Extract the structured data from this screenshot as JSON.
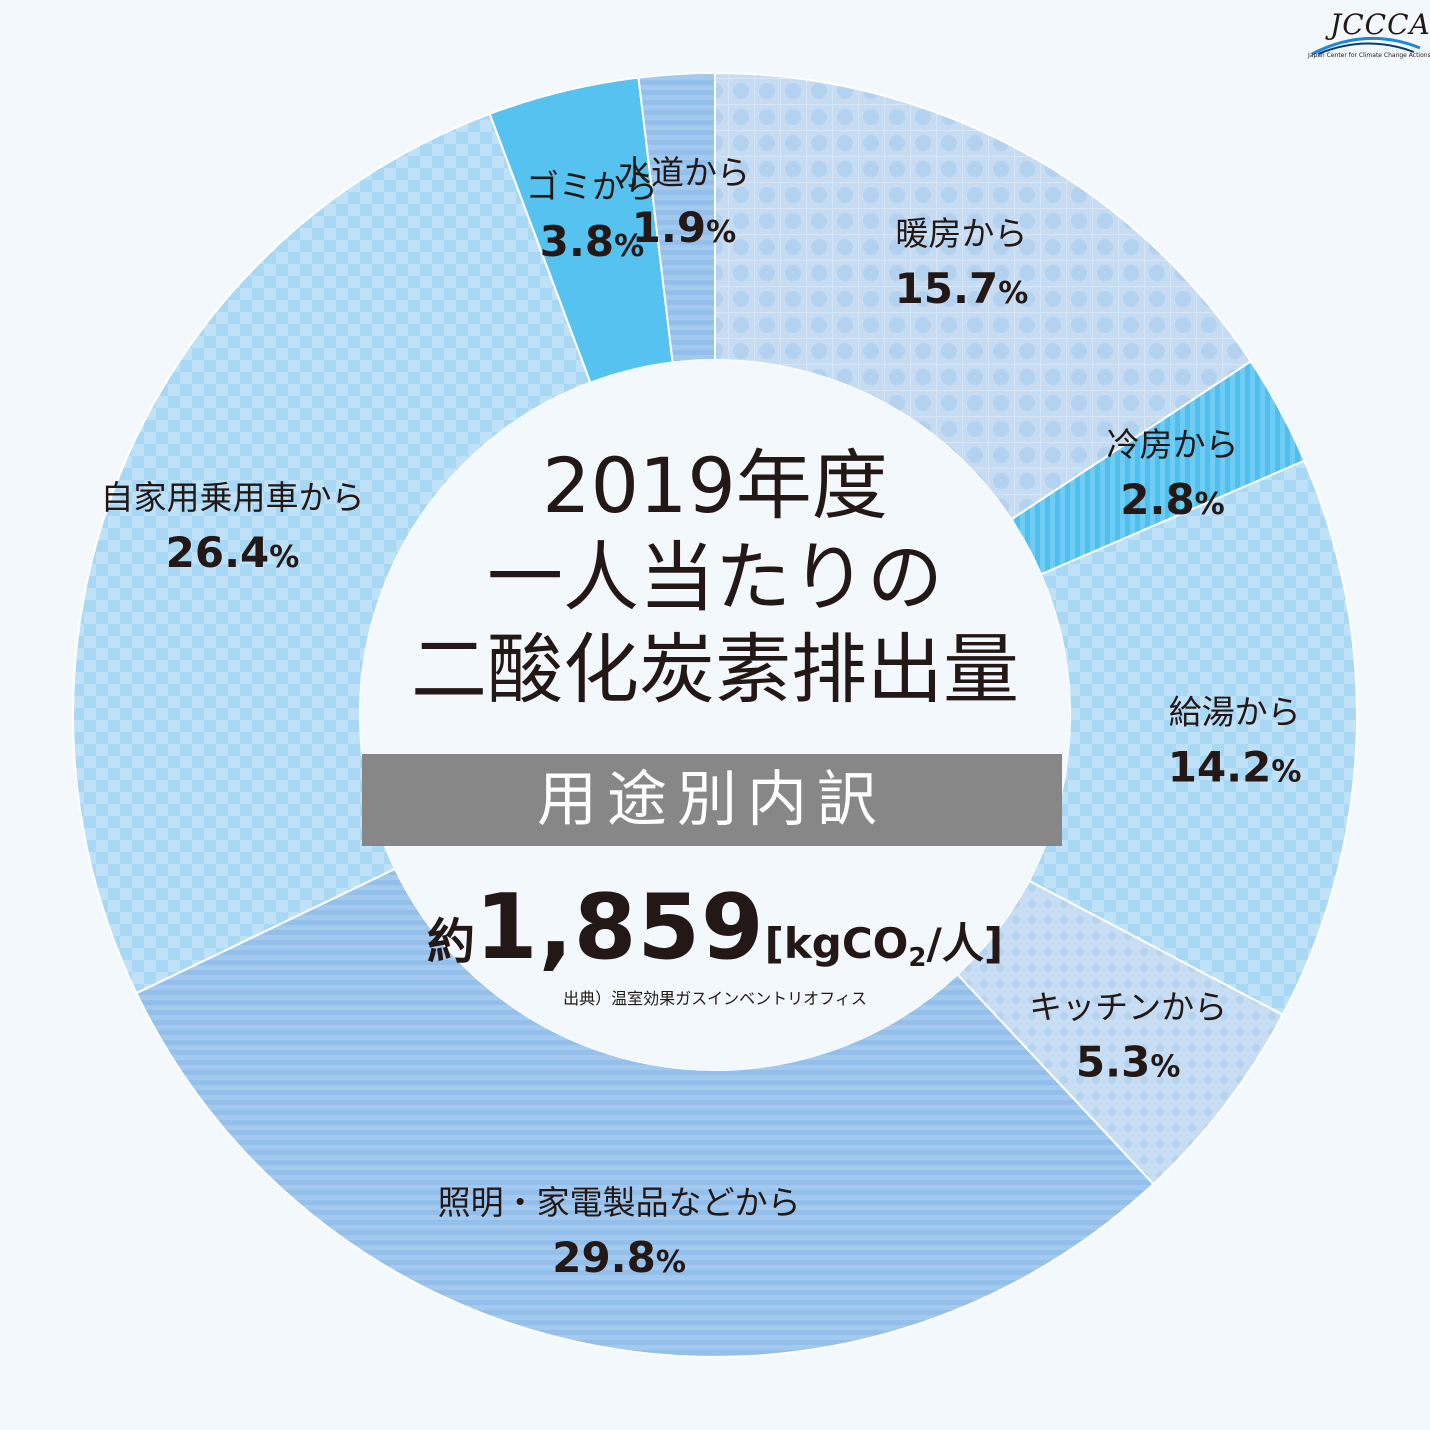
{
  "center": {
    "title_lines": [
      "2019年度",
      "一人当たりの",
      "二酸化炭素排出量"
    ],
    "subtitle": "用途別内訳",
    "total_prefix": "約",
    "total_value": "1,859",
    "total_unit_pre": "[kgCO",
    "total_unit_sub": "2",
    "total_unit_post": "/人]",
    "source": "出典）温室効果ガスインベントリオフィス"
  },
  "logo": {
    "mark": "JCCCA",
    "subtitle": "Japan Center for Climate Change Actions"
  },
  "chart_data": {
    "type": "pie",
    "unit": "%",
    "slices": [
      {
        "label": "暖房から",
        "value": 15.7,
        "display": "15.7",
        "color": "#c5dcf3",
        "pattern": "dots"
      },
      {
        "label": "冷房から",
        "value": 2.8,
        "display": "2.8",
        "color": "#4ebfee",
        "pattern": "vstripes"
      },
      {
        "label": "給湯から",
        "value": 14.2,
        "display": "14.2",
        "color": "#a9d8f5",
        "pattern": "checker"
      },
      {
        "label": "キッチンから",
        "value": 5.3,
        "display": "5.3",
        "color": "#c5dcf3",
        "pattern": "smalldots"
      },
      {
        "label": "照明・家電製品などから",
        "value": 29.8,
        "display": "29.8",
        "color": "#9fc5ec",
        "pattern": "hstripes"
      },
      {
        "label": "自家用乗用車から",
        "value": 26.4,
        "display": "26.4",
        "color": "#a9d8f5",
        "pattern": "checker"
      },
      {
        "label": "ゴミから",
        "value": 3.8,
        "display": "3.8",
        "color": "#56c2f0",
        "pattern": "solid"
      },
      {
        "label": "水道から",
        "value": 1.9,
        "display": "1.9",
        "color": "#9fc5ec",
        "pattern": "hstripes"
      }
    ]
  }
}
